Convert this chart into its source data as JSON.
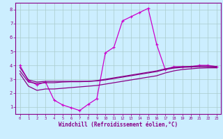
{
  "bg_color": "#cceeff",
  "grid_color": "#aacccc",
  "line_color": "#880088",
  "line_color_bright": "#cc00cc",
  "xlabel": "Windchill (Refroidissement éolien,°C)",
  "xlim": [
    -0.5,
    23.5
  ],
  "ylim": [
    0.5,
    8.5
  ],
  "yticks": [
    1,
    2,
    3,
    4,
    5,
    6,
    7,
    8
  ],
  "xticks": [
    0,
    1,
    2,
    3,
    4,
    5,
    6,
    7,
    8,
    9,
    10,
    11,
    12,
    13,
    14,
    15,
    16,
    17,
    18,
    19,
    20,
    21,
    22,
    23
  ],
  "series1_x": [
    0,
    1,
    2,
    3,
    4,
    5,
    6,
    7,
    8,
    9,
    10,
    11,
    12,
    13,
    14,
    15,
    16,
    17,
    18,
    19,
    20,
    21,
    22,
    23
  ],
  "series1_y": [
    4.0,
    2.9,
    2.6,
    2.8,
    1.5,
    1.15,
    0.95,
    0.75,
    1.2,
    1.6,
    4.9,
    5.3,
    7.2,
    7.5,
    7.8,
    8.1,
    5.5,
    3.7,
    3.9,
    3.9,
    3.9,
    4.0,
    4.0,
    3.9
  ],
  "series2_x": [
    0,
    1,
    2,
    3,
    4,
    5,
    6,
    7,
    8,
    9,
    10,
    11,
    12,
    13,
    14,
    15,
    16,
    17,
    18,
    19,
    20,
    21,
    22,
    23
  ],
  "series2_y": [
    3.85,
    2.95,
    2.8,
    2.85,
    2.85,
    2.85,
    2.85,
    2.85,
    2.85,
    2.9,
    3.0,
    3.1,
    3.2,
    3.3,
    3.4,
    3.5,
    3.6,
    3.75,
    3.85,
    3.9,
    3.92,
    3.95,
    3.95,
    3.92
  ],
  "series3_x": [
    0,
    1,
    2,
    3,
    4,
    5,
    6,
    7,
    8,
    9,
    10,
    11,
    12,
    13,
    14,
    15,
    16,
    17,
    18,
    19,
    20,
    21,
    22,
    23
  ],
  "series3_y": [
    3.6,
    2.8,
    2.7,
    2.75,
    2.75,
    2.8,
    2.82,
    2.82,
    2.84,
    2.88,
    2.95,
    3.05,
    3.15,
    3.25,
    3.35,
    3.45,
    3.55,
    3.7,
    3.8,
    3.85,
    3.88,
    3.9,
    3.9,
    3.88
  ],
  "series4_x": [
    0,
    1,
    2,
    3,
    4,
    5,
    6,
    7,
    8,
    9,
    10,
    11,
    12,
    13,
    14,
    15,
    16,
    17,
    18,
    19,
    20,
    21,
    22,
    23
  ],
  "series4_y": [
    3.4,
    2.5,
    2.2,
    2.3,
    2.3,
    2.35,
    2.4,
    2.45,
    2.5,
    2.55,
    2.65,
    2.75,
    2.85,
    2.95,
    3.05,
    3.15,
    3.25,
    3.45,
    3.6,
    3.7,
    3.75,
    3.8,
    3.82,
    3.82
  ]
}
